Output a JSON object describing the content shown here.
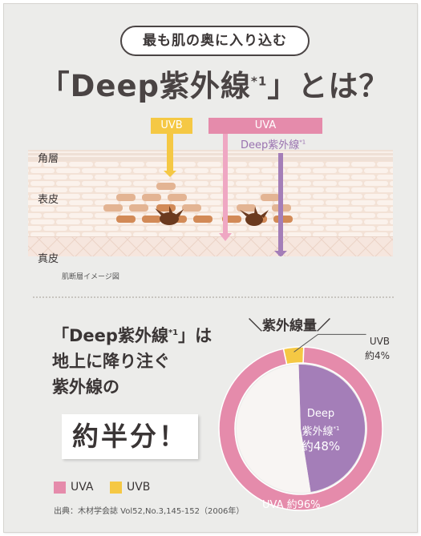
{
  "header": {
    "pill_text": "最も肌の奥に入り込む",
    "title_open": "「Deep紫外線",
    "title_sup": "*1",
    "title_close": "」とは？"
  },
  "diagram": {
    "uvb_label": "UVB",
    "uva_label": "UVA",
    "deep_label": "Deep紫外線",
    "deep_sup": "*1",
    "layers": [
      "角層",
      "表皮",
      "真皮"
    ],
    "caption": "肌断層イメージ図"
  },
  "lead": {
    "line1_open": "「Deep紫外線",
    "line1_sup": "*1",
    "line1_close": "」は",
    "line2": "地上に降り注ぐ",
    "line3": "紫外線の",
    "highlight": "約半分！"
  },
  "legend": {
    "uva": "UVA",
    "uvb": "UVB"
  },
  "source": "出典：木材学会誌 Vol52,No.3,145-152（2006年）",
  "chart_data": {
    "type": "pie",
    "title": "紫外線量",
    "slices": [
      {
        "name": "UVA",
        "label": "UVA 約96%",
        "value": 96
      },
      {
        "name": "UVB",
        "label_line1": "UVB",
        "label_line2": "約4%",
        "value": 4
      }
    ],
    "sub_slice": {
      "parent": "UVA",
      "label_line1": "Deep",
      "label_line2": "紫外線",
      "sup": "*1",
      "label_line3": "約48%",
      "value": 48
    }
  },
  "colors": {
    "uva": "#e58bab",
    "uvb": "#f5c844",
    "deep": "#a47eb8",
    "skin": "#f7ebe4",
    "brick": "#e6c1a8",
    "brick_dark": "#d7925e"
  }
}
